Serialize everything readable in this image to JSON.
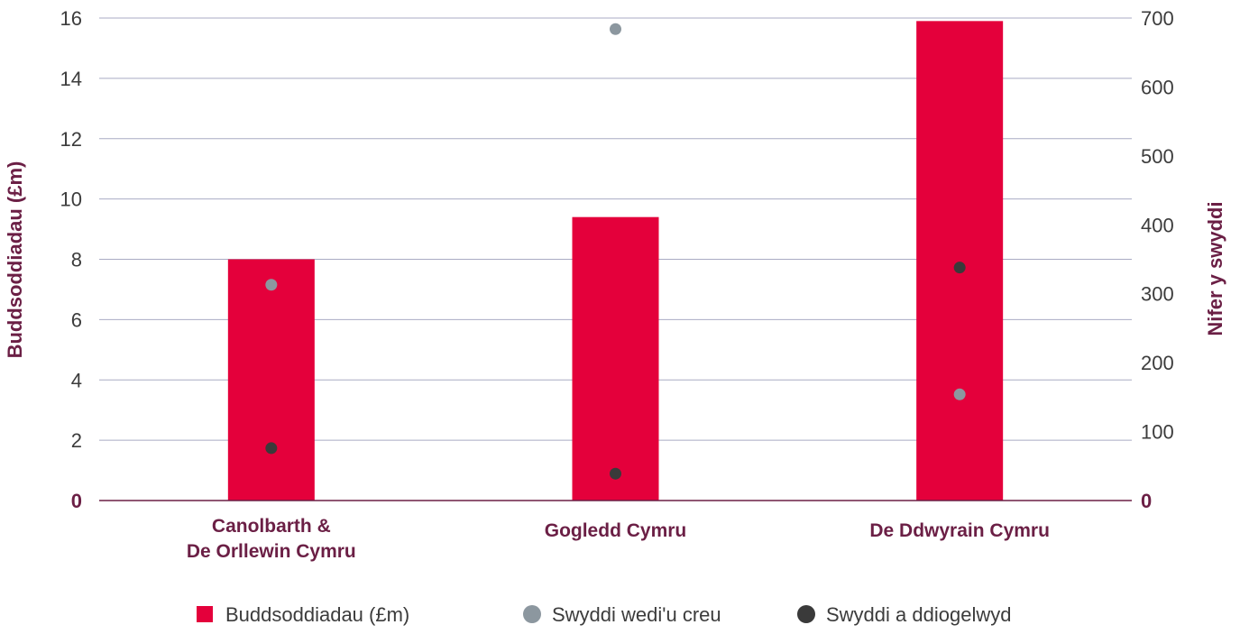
{
  "chart_data": {
    "type": "bar",
    "categories": [
      [
        "Canolbarth &",
        "De Orllewin Cymru"
      ],
      [
        "Gogledd Cymru"
      ],
      [
        "De Ddwyrain Cymru"
      ]
    ],
    "left_axis": {
      "label": "Buddsoddiadau (£m)",
      "ylim": [
        0,
        16
      ],
      "ticks": [
        "0",
        "2",
        "4",
        "6",
        "8",
        "10",
        "12",
        "14",
        "16"
      ]
    },
    "right_axis": {
      "label": "Nifer y swyddi",
      "ylim": [
        0,
        700
      ],
      "ticks": [
        "0",
        "100",
        "200",
        "300",
        "400",
        "500",
        "600",
        "700"
      ]
    },
    "grid": true,
    "legend_position": "bottom",
    "series": [
      {
        "name": "Buddsoddiadau (£m)",
        "type": "bar",
        "axis": "left",
        "color": "#e4003b",
        "values": [
          8.0,
          9.4,
          15.9
        ]
      },
      {
        "name": "Swyddi wedi'u creu",
        "type": "scatter",
        "axis": "right",
        "color": "#8c979f",
        "values": [
          313,
          684,
          154
        ]
      },
      {
        "name": "Swyddi a ddiogelwyd",
        "type": "scatter",
        "axis": "right",
        "color": "#3a3a3a",
        "values": [
          76,
          39,
          338
        ]
      }
    ]
  }
}
